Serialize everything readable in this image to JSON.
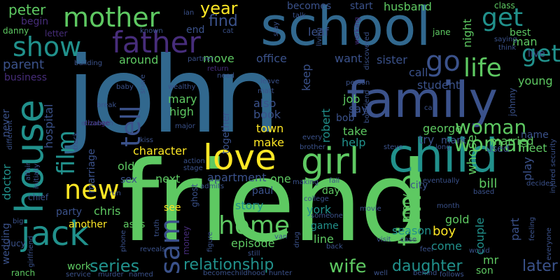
{
  "colors": {
    "background": "#000000",
    "blue": "#31688e",
    "teal": "#21918c",
    "green": "#5ec962",
    "yellow": "#fde725",
    "purple": "#472d7b",
    "indigo": "#3b528b"
  },
  "words": {
    "john": "john",
    "friend": "friend",
    "school": "school",
    "family": "family",
    "child": "child",
    "house": "house",
    "mother": "mother",
    "father": "father",
    "love": "love",
    "girl": "girl",
    "jack": "jack",
    "new": "new",
    "home": "home",
    "sam": "sam",
    "show": "show",
    "life": "life",
    "go": "go",
    "get": "get",
    "tell": "tell",
    "film": "film",
    "time": "time",
    "woman": "woman",
    "year": "year",
    "find": "find",
    "peter": "peter",
    "parent": "parent",
    "relationship": "relationship",
    "daughter": "daughter",
    "wife": "wife",
    "series": "series",
    "later": "later",
    "episode": "episode",
    "story": "story",
    "york": "york",
    "character": "character",
    "apartment": "apartment",
    "next": "next",
    "sex": "sex",
    "old": "old",
    "doctor": "doctor",
    "marriage": "marriage",
    "hospital": "hospital",
    "together": "together",
    "robert": "robert",
    "keep": "keep",
    "job": "job",
    "say": "say",
    "bob": "bob",
    "take": "take",
    "help": "help",
    "george": "george",
    "try": "try",
    "mark": "mark",
    "whose": "whose",
    "married": "married",
    "meet": "meet",
    "name": "name",
    "used": "used",
    "bill": "bill",
    "city": "city",
    "play": "play",
    "couple": "couple",
    "part": "part",
    "boy": "boy",
    "season": "season",
    "gold": "gold",
    "come": "come",
    "mr": "mr",
    "son": "son",
    "work": "work",
    "another": "another",
    "party": "party",
    "chris": "chris",
    "asks": "asks",
    "see": "see",
    "paul": "paul",
    "one": "one",
    "day": "day",
    "game": "game",
    "line": "line",
    "mary": "mary",
    "high": "high",
    "make": "make",
    "town": "town",
    "book": "book",
    "also": "also",
    "around": "around",
    "move": "move",
    "want": "want",
    "sister": "sister",
    "call": "call",
    "student": "student",
    "young": "young",
    "night": "night",
    "man": "man",
    "best": "best",
    "live": "live",
    "office": "office",
    "leaf": "leaf",
    "end": "end",
    "begin": "begin",
    "danny": "danny",
    "letter": "letter",
    "business": "business",
    "chief": "chief",
    "lucy": "lucy",
    "wedding": "wedding",
    "ranch": "ranch",
    "never": "never",
    "becomes": "becomes",
    "start": "start",
    "husband": "husband",
    "class": "class",
    "jane": "jane",
    "known": "known",
    "cat": "cat",
    "talk": "talk",
    "living": "living",
    "working": "working",
    "discovered": "discovered",
    "building": "building",
    "baby": "baby",
    "break": "break",
    "share": "share",
    "wealthy": "wealthy",
    "major": "major",
    "kiss": "kiss",
    "elizabeth": "elizabeth",
    "change": "change",
    "track": "track",
    "matt": "matt",
    "leave": "leave",
    "return": "return",
    "need": "need",
    "person": "person",
    "boyfriend": "boyfriend",
    "car": "car",
    "steve": "steve",
    "brother": "brother",
    "every": "every",
    "long": "long",
    "johnny": "johnny",
    "saying": "saying",
    "think": "think",
    "injured_security": "injured security",
    "action": "action",
    "stage": "stage",
    "ghost": "ghost",
    "admits": "admits",
    "making": "making",
    "fall": "fall",
    "college": "college",
    "someone": "someone",
    "movie": "movie",
    "month": "month",
    "based": "based",
    "eventually": "eventually",
    "decides": "decides",
    "feeling": "feeling",
    "everyone": "everyone",
    "phone": "phone",
    "money": "money",
    "figure": "figure",
    "truth": "truth",
    "still": "still",
    "back": "back",
    "visit": "visit",
    "case": "case",
    "feel": "feel",
    "would": "would",
    "behind": "behind",
    "follows": "follows",
    "well": "well",
    "become": "become",
    "childhood": "childhood",
    "hunter": "hunter",
    "service": "service",
    "murder": "murder",
    "named": "named",
    "reveals": "reveals",
    "van": "van",
    "drug": "drug",
    "girlfriend": "girlfriend",
    "big": "big",
    "affair": "affair",
    "initially": "initially",
    "different": "different",
    "partner": "partner",
    "run": "run",
    "ian": "ian",
    "stay": "stay"
  }
}
